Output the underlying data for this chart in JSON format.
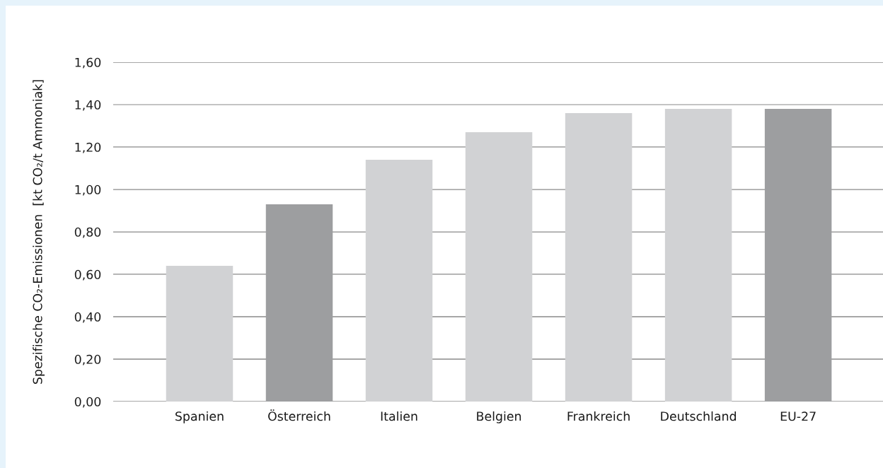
{
  "chart_data": {
    "type": "bar",
    "ylabel": "Spezifische CO₂-Emissionen  [kt CO₂/t Ammoniak]",
    "categories": [
      "Spanien",
      "Österreich",
      "Italien",
      "Belgien",
      "Frankreich",
      "Deutschland",
      "EU-27"
    ],
    "values": [
      0.64,
      0.93,
      1.14,
      1.27,
      1.36,
      1.38,
      1.38
    ],
    "colors": [
      "#d1d2d4",
      "#9d9ea0",
      "#d1d2d4",
      "#d1d2d4",
      "#d1d2d4",
      "#d1d2d4",
      "#9d9ea0"
    ],
    "ylim": [
      0,
      1.6
    ],
    "yticks": [
      {
        "value": 0,
        "label": "0,00"
      },
      {
        "value": 0.2,
        "label": "0,20"
      },
      {
        "value": 0.4,
        "label": "0,40"
      },
      {
        "value": 0.6,
        "label": "0,60"
      },
      {
        "value": 0.8,
        "label": "0,80"
      },
      {
        "value": 1.0,
        "label": "1,00"
      },
      {
        "value": 1.2,
        "label": "1,20"
      },
      {
        "value": 1.4,
        "label": "1,40"
      },
      {
        "value": 1.6,
        "label": "1,60"
      }
    ],
    "grid": "y"
  }
}
